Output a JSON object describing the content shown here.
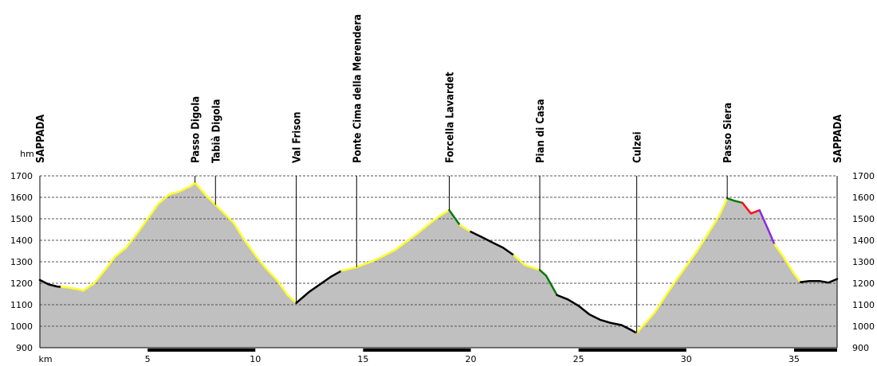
{
  "chart_data": {
    "type": "area",
    "title": "",
    "xlabel": "km",
    "ylabel": "hm",
    "xlim": [
      0,
      37
    ],
    "ylim": [
      900,
      1700
    ],
    "x_ticks": [
      5,
      10,
      15,
      20,
      25,
      30,
      35
    ],
    "y_ticks": [
      900,
      1000,
      1100,
      1200,
      1300,
      1400,
      1500,
      1600,
      1700
    ],
    "grid": true,
    "colors": {
      "fill": "#c0c0c0",
      "black": "#000000",
      "yellow": "#ffff2a",
      "green": "#0a7a0a",
      "red": "#ff1010",
      "purple": "#8a2be2",
      "grid": "#555555"
    },
    "waypoints": [
      {
        "name": "SAPPADA",
        "km": 0.0
      },
      {
        "name": "Passo Digola",
        "km": 7.2
      },
      {
        "name": "Tabià Digola",
        "km": 8.15
      },
      {
        "name": "Val Frison",
        "km": 11.9
      },
      {
        "name": "Ponte Cima della Merendera",
        "km": 14.7
      },
      {
        "name": "Forcella Lavardet",
        "km": 19.0
      },
      {
        "name": "Pian di Casa",
        "km": 23.2
      },
      {
        "name": "Culzei",
        "km": 27.7
      },
      {
        "name": "Passo Siera",
        "km": 31.9
      },
      {
        "name": "SAPPADA",
        "km": 37.0
      }
    ],
    "profile": [
      [
        0.0,
        1215
      ],
      [
        0.4,
        1195
      ],
      [
        0.8,
        1185
      ],
      [
        1.0,
        1183
      ],
      [
        1.3,
        1180
      ],
      [
        1.8,
        1172
      ],
      [
        2.0,
        1165
      ],
      [
        2.5,
        1198
      ],
      [
        3.0,
        1260
      ],
      [
        3.5,
        1325
      ],
      [
        4.0,
        1365
      ],
      [
        4.5,
        1430
      ],
      [
        5.0,
        1500
      ],
      [
        5.5,
        1570
      ],
      [
        6.0,
        1613
      ],
      [
        6.5,
        1628
      ],
      [
        7.0,
        1652
      ],
      [
        7.2,
        1668
      ],
      [
        7.7,
        1610
      ],
      [
        8.15,
        1565
      ],
      [
        9.0,
        1480
      ],
      [
        9.5,
        1400
      ],
      [
        10.0,
        1330
      ],
      [
        10.5,
        1268
      ],
      [
        11.0,
        1215
      ],
      [
        11.5,
        1145
      ],
      [
        11.9,
        1108
      ],
      [
        12.5,
        1160
      ],
      [
        13.0,
        1195
      ],
      [
        13.5,
        1230
      ],
      [
        14.0,
        1258
      ],
      [
        14.7,
        1275
      ],
      [
        15.5,
        1305
      ],
      [
        16.5,
        1355
      ],
      [
        17.5,
        1430
      ],
      [
        18.5,
        1510
      ],
      [
        19.0,
        1540
      ],
      [
        19.5,
        1470
      ],
      [
        20.0,
        1440
      ],
      [
        20.5,
        1415
      ],
      [
        21.0,
        1390
      ],
      [
        21.5,
        1365
      ],
      [
        22.0,
        1330
      ],
      [
        22.5,
        1285
      ],
      [
        23.2,
        1262
      ],
      [
        23.5,
        1235
      ],
      [
        24.0,
        1145
      ],
      [
        24.5,
        1125
      ],
      [
        25.0,
        1095
      ],
      [
        25.5,
        1055
      ],
      [
        26.0,
        1030
      ],
      [
        26.5,
        1015
      ],
      [
        27.0,
        1005
      ],
      [
        27.4,
        985
      ],
      [
        27.7,
        968
      ],
      [
        28.5,
        1060
      ],
      [
        29.5,
        1210
      ],
      [
        30.5,
        1350
      ],
      [
        31.5,
        1510
      ],
      [
        31.9,
        1595
      ],
      [
        32.2,
        1585
      ],
      [
        32.6,
        1575
      ],
      [
        33.0,
        1525
      ],
      [
        33.4,
        1540
      ],
      [
        33.8,
        1450
      ],
      [
        34.1,
        1380
      ],
      [
        34.5,
        1325
      ],
      [
        35.0,
        1245
      ],
      [
        35.3,
        1205
      ],
      [
        35.7,
        1210
      ],
      [
        36.2,
        1210
      ],
      [
        36.6,
        1203
      ],
      [
        37.0,
        1220
      ]
    ],
    "segments": [
      {
        "color": "black",
        "from_km": 0.0,
        "to_km": 1.0
      },
      {
        "color": "yellow",
        "from_km": 1.0,
        "to_km": 11.9
      },
      {
        "color": "black",
        "from_km": 11.9,
        "to_km": 14.0
      },
      {
        "color": "yellow",
        "from_km": 14.0,
        "to_km": 19.0
      },
      {
        "color": "green",
        "from_km": 19.0,
        "to_km": 19.5
      },
      {
        "color": "yellow",
        "from_km": 19.5,
        "to_km": 20.0
      },
      {
        "color": "black",
        "from_km": 20.0,
        "to_km": 22.0
      },
      {
        "color": "yellow",
        "from_km": 22.0,
        "to_km": 23.2
      },
      {
        "color": "green",
        "from_km": 23.2,
        "to_km": 24.0
      },
      {
        "color": "black",
        "from_km": 24.0,
        "to_km": 27.7
      },
      {
        "color": "yellow",
        "from_km": 27.7,
        "to_km": 31.9
      },
      {
        "color": "green",
        "from_km": 31.9,
        "to_km": 32.6
      },
      {
        "color": "red",
        "from_km": 32.6,
        "to_km": 33.4
      },
      {
        "color": "purple",
        "from_km": 33.4,
        "to_km": 34.1
      },
      {
        "color": "yellow",
        "from_km": 34.1,
        "to_km": 35.3
      },
      {
        "color": "black",
        "from_km": 35.3,
        "to_km": 37.0
      }
    ]
  }
}
